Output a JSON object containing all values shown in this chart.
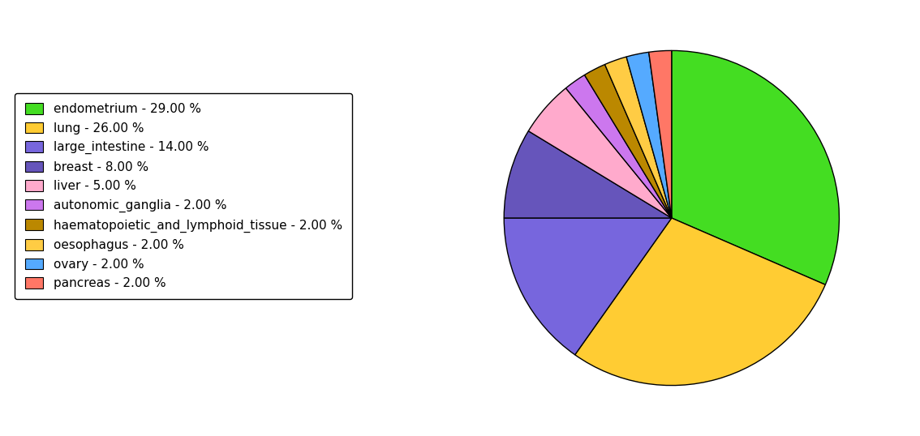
{
  "labels": [
    "endometrium",
    "lung",
    "large_intestine",
    "breast",
    "liver",
    "autonomic_ganglia",
    "haematopoietic_and_lymphoid_tissue",
    "oesophagus",
    "ovary",
    "pancreas"
  ],
  "values": [
    29,
    26,
    14,
    8,
    5,
    2,
    2,
    2,
    2,
    2
  ],
  "colors": [
    "#44dd22",
    "#ffcc33",
    "#7766dd",
    "#6655bb",
    "#ffaacc",
    "#cc77ee",
    "#bb8800",
    "#ffcc44",
    "#55aaff",
    "#ff7766"
  ],
  "legend_labels": [
    "endometrium - 29.00 %",
    "lung - 26.00 %",
    "large_intestine - 14.00 %",
    "breast - 8.00 %",
    "liver - 5.00 %",
    "autonomic_ganglia - 2.00 %",
    "haematopoietic_and_lymphoid_tissue - 2.00 %",
    "oesophagus - 2.00 %",
    "ovary - 2.00 %",
    "pancreas - 2.00 %"
  ],
  "figsize": [
    11.34,
    5.38
  ],
  "dpi": 100,
  "fontsize": 11
}
